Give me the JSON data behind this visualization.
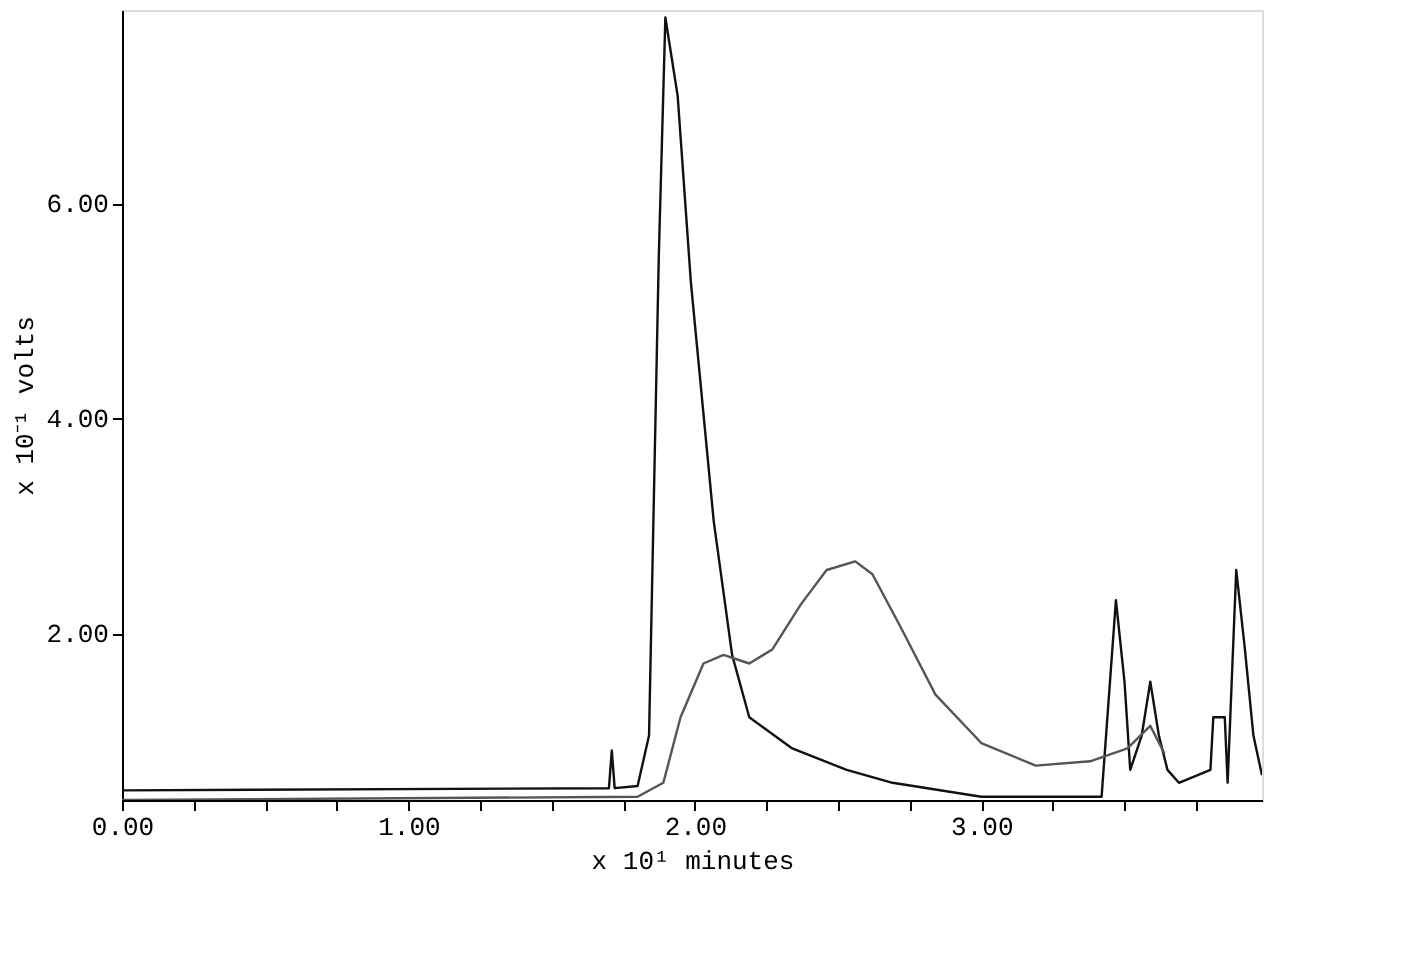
{
  "chart_data": {
    "type": "line",
    "xlabel": "x 10¹ minutes",
    "ylabel": "x 10⁻¹ volts",
    "xlim": [
      0,
      3.98
    ],
    "ylim": [
      0.45,
      7.8
    ],
    "xticks": [
      {
        "value": 0,
        "label": "0.00"
      },
      {
        "value": 0.25,
        "label": null
      },
      {
        "value": 0.5,
        "label": null
      },
      {
        "value": 0.75,
        "label": null
      },
      {
        "value": 1,
        "label": "1.00"
      },
      {
        "value": 1.25,
        "label": null
      },
      {
        "value": 1.5,
        "label": null
      },
      {
        "value": 1.75,
        "label": null
      },
      {
        "value": 2,
        "label": "2.00"
      },
      {
        "value": 2.25,
        "label": null
      },
      {
        "value": 2.5,
        "label": null
      },
      {
        "value": 2.75,
        "label": null
      },
      {
        "value": 3,
        "label": "3.00"
      },
      {
        "value": 3.25,
        "label": null
      },
      {
        "value": 3.5,
        "label": null
      },
      {
        "value": 3.75,
        "label": null
      }
    ],
    "yticks": [
      {
        "value": 2,
        "label": "2.00"
      },
      {
        "value": 4,
        "label": "4.00"
      },
      {
        "value": 6,
        "label": "6.00"
      }
    ],
    "grid": false,
    "legend": false,
    "series": [
      {
        "color": "#111111",
        "x": [
          0,
          1.7,
          1.71,
          1.72,
          1.8,
          1.84,
          1.874,
          1.897,
          1.94,
          1.986,
          2.066,
          2.13,
          2.19,
          2.34,
          2.53,
          2.69,
          3.0,
          3.42,
          3.47,
          3.5,
          3.52,
          3.56,
          3.59,
          3.62,
          3.65,
          3.69,
          3.8,
          3.81,
          3.85,
          3.86,
          3.89,
          3.92,
          3.95,
          3.98
        ],
        "values": [
          0.54,
          0.56,
          0.91,
          0.56,
          0.58,
          1.05,
          5.5,
          7.73,
          7.0,
          5.27,
          3.04,
          1.8,
          1.22,
          0.93,
          0.73,
          0.61,
          0.48,
          0.48,
          2.31,
          1.55,
          0.73,
          1.05,
          1.55,
          1.05,
          0.73,
          0.61,
          0.73,
          1.22,
          1.22,
          0.61,
          2.59,
          1.86,
          1.05,
          0.68
        ]
      },
      {
        "color": "#555555",
        "x": [
          0,
          1.8,
          1.89,
          1.95,
          2.03,
          2.1,
          2.19,
          2.27,
          2.37,
          2.46,
          2.56,
          2.62,
          2.72,
          2.84,
          3.0,
          3.19,
          3.38,
          3.51,
          3.59,
          3.64
        ],
        "values": [
          0.45,
          0.48,
          0.61,
          1.22,
          1.72,
          1.8,
          1.72,
          1.85,
          2.27,
          2.59,
          2.67,
          2.55,
          2.05,
          1.43,
          0.98,
          0.77,
          0.81,
          0.93,
          1.14,
          0.88
        ]
      }
    ]
  }
}
